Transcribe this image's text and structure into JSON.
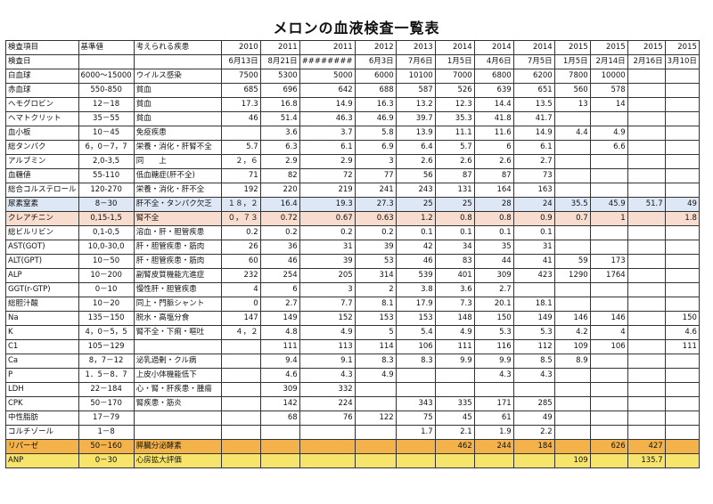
{
  "title": "メロンの血液検査一覧表",
  "header": {
    "item": "検査項目",
    "ref": "基準値",
    "disease": "考えられる疾患",
    "years": [
      "2010",
      "2011",
      "2011",
      "2012",
      "2013",
      "2014",
      "2014",
      "2014",
      "2015",
      "2015",
      "2015",
      "2015"
    ]
  },
  "date_row": {
    "label": "検査日",
    "dates": [
      "6月13日",
      "8月21日",
      "########",
      "6月3日",
      "7月6日",
      "1月5日",
      "4月6日",
      "7月5日",
      "1月5日",
      "2月14日",
      "2月16日",
      "3月10日"
    ]
  },
  "rows": [
    {
      "label": "白血球",
      "ref": "6000～15000",
      "disease": "ウイルス感染",
      "values": [
        "7500",
        "5300",
        "5000",
        "6000",
        "10100",
        "7000",
        "6800",
        "6200",
        "7800",
        "10000",
        "",
        ""
      ],
      "hl": ""
    },
    {
      "label": "赤血球",
      "ref": "550-850",
      "disease": "貧血",
      "values": [
        "685",
        "696",
        "642",
        "688",
        "587",
        "526",
        "639",
        "651",
        "560",
        "578",
        "",
        ""
      ],
      "hl": ""
    },
    {
      "label": "ヘモグロビン",
      "ref": "12－18",
      "disease": "貧血",
      "values": [
        "17.3",
        "16.8",
        "14.9",
        "16.3",
        "13.2",
        "12.3",
        "14.4",
        "13.5",
        "13",
        "14",
        "",
        ""
      ],
      "hl": ""
    },
    {
      "label": "ヘマトクリット",
      "ref": "35－55",
      "disease": "貧血",
      "values": [
        "46",
        "51.4",
        "46.3",
        "46.9",
        "39.7",
        "35.3",
        "41.8",
        "41.7",
        "",
        "",
        "",
        ""
      ],
      "hl": ""
    },
    {
      "label": "血小板",
      "ref": "10－45",
      "disease": "免疫疾患",
      "values": [
        "",
        "3.6",
        "3.7",
        "5.8",
        "13.9",
        "11.1",
        "11.6",
        "14.9",
        "4.4",
        "4.9",
        "",
        ""
      ],
      "hl": ""
    },
    {
      "label": "総タンパク",
      "ref": "6，0－7，7",
      "disease": "栄養・消化・肝腎不全",
      "values": [
        "5.7",
        "6.3",
        "6.1",
        "6.9",
        "6.4",
        "5.7",
        "6",
        "6.1",
        "",
        "6.6",
        "",
        ""
      ],
      "hl": ""
    },
    {
      "label": "アルブミン",
      "ref": "2,0-3,5",
      "disease": "同　　上",
      "values": [
        "２，６",
        "2.9",
        "2.9",
        "3",
        "2.6",
        "2.6",
        "2.6",
        "2.7",
        "",
        "",
        "",
        ""
      ],
      "hl": ""
    },
    {
      "label": "血糖値",
      "ref": "55-110",
      "disease": "低血糖症(肝不全)",
      "values": [
        "71",
        "82",
        "72",
        "77",
        "56",
        "87",
        "87",
        "73",
        "",
        "",
        "",
        ""
      ],
      "hl": ""
    },
    {
      "label": "総合コルステロール",
      "ref": "120-270",
      "disease": "栄養・消化・肝不全",
      "values": [
        "192",
        "220",
        "219",
        "241",
        "243",
        "131",
        "164",
        "163",
        "",
        "",
        "",
        ""
      ],
      "hl": ""
    },
    {
      "label": "尿素窒素",
      "ref": "8－30",
      "disease": "肝不全・タンパク欠乏",
      "values": [
        "１８，２",
        "16.4",
        "19.3",
        "27.3",
        "25",
        "25",
        "28",
        "24",
        "35.5",
        "45.9",
        "51.7",
        "49"
      ],
      "hl": "blue"
    },
    {
      "label": "クレアチニン",
      "ref": "0,15-1,5",
      "disease": "腎不全",
      "values": [
        "０，７３",
        "0.72",
        "0.67",
        "0.63",
        "1.2",
        "0.8",
        "0.8",
        "0.9",
        "0.7",
        "1",
        "",
        "1.8"
      ],
      "hl": "pink"
    },
    {
      "label": "総ビルリビン",
      "ref": "0,1-0,5",
      "disease": "溶血・肝・胆管疾患",
      "values": [
        "0.2",
        "0.2",
        "0.2",
        "0.2",
        "0.1",
        "0.1",
        "0.1",
        "0.1",
        "",
        "",
        "",
        ""
      ],
      "hl": ""
    },
    {
      "label": "AST(GOT)",
      "ref": "10,0-30,0",
      "disease": "肝・胆管疾患・筋肉",
      "values": [
        "26",
        "36",
        "31",
        "39",
        "42",
        "34",
        "35",
        "31",
        "",
        "",
        "",
        ""
      ],
      "hl": ""
    },
    {
      "label": "ALT(GPT)",
      "ref": "10－50",
      "disease": "肝・胆管疾患・筋肉",
      "values": [
        "60",
        "46",
        "39",
        "53",
        "46",
        "83",
        "44",
        "41",
        "59",
        "173",
        "",
        ""
      ],
      "hl": ""
    },
    {
      "label": "ALP",
      "ref": "10－200",
      "disease": "副腎皮質機能亢進症",
      "values": [
        "232",
        "254",
        "205",
        "314",
        "539",
        "401",
        "309",
        "423",
        "1290",
        "1764",
        "",
        ""
      ],
      "hl": ""
    },
    {
      "label": "GGT(r-GTP)",
      "ref": "0－10",
      "disease": "慢性肝・胆管疾患",
      "values": [
        "4",
        "6",
        "3",
        "2",
        "3.8",
        "3.6",
        "2.7",
        "",
        "",
        "",
        "",
        ""
      ],
      "hl": ""
    },
    {
      "label": "総胆汁酸",
      "ref": "10－20",
      "disease": "同上・門脈シャント",
      "values": [
        "0",
        "2.7",
        "7.7",
        "8.1",
        "17.9",
        "7.3",
        "20.1",
        "18.1",
        "",
        "",
        "",
        ""
      ],
      "hl": ""
    },
    {
      "label": "Na",
      "ref": "135－150",
      "disease": "脱水・高塩分食",
      "values": [
        "147",
        "149",
        "152",
        "153",
        "153",
        "148",
        "150",
        "149",
        "146",
        "146",
        "",
        "150"
      ],
      "hl": ""
    },
    {
      "label": "K",
      "ref": "4，0－5，5",
      "disease": "腎不全・下痢・嘔吐",
      "values": [
        "４，２",
        "4.8",
        "4.9",
        "5",
        "5.4",
        "4.9",
        "5.3",
        "5.3",
        "4.2",
        "4",
        "",
        "4.6"
      ],
      "hl": ""
    },
    {
      "label": "C1",
      "ref": "105－129",
      "disease": "",
      "values": [
        "",
        "111",
        "113",
        "114",
        "106",
        "111",
        "116",
        "112",
        "109",
        "106",
        "",
        "111"
      ],
      "hl": ""
    },
    {
      "label": "Ca",
      "ref": "8，7－12",
      "disease": "泌乳過剰・クル病",
      "values": [
        "",
        "9.4",
        "9.1",
        "8.3",
        "8.3",
        "9.9",
        "9.9",
        "8.5",
        "8.9",
        "",
        "",
        ""
      ],
      "hl": ""
    },
    {
      "label": "P",
      "ref": "1．5－8．7",
      "disease": "上皮小体機能低下",
      "values": [
        "",
        "4.6",
        "4.3",
        "4.9",
        "",
        "",
        "4.3",
        "4.3",
        "",
        "",
        "",
        ""
      ],
      "hl": ""
    },
    {
      "label": "LDH",
      "ref": "22－184",
      "disease": "心・腎・肝疾患・腫瘍",
      "values": [
        "",
        "309",
        "332",
        "",
        "",
        "",
        "",
        "",
        "",
        "",
        "",
        ""
      ],
      "hl": ""
    },
    {
      "label": "CPK",
      "ref": "50－170",
      "disease": "腎疾患・筋炎",
      "values": [
        "",
        "142",
        "224",
        "",
        "343",
        "335",
        "171",
        "285",
        "",
        "",
        "",
        ""
      ],
      "hl": ""
    },
    {
      "label": "中性脂肪",
      "ref": "17－79",
      "disease": "",
      "values": [
        "",
        "68",
        "76",
        "122",
        "75",
        "45",
        "61",
        "49",
        "",
        "",
        "",
        ""
      ],
      "hl": ""
    },
    {
      "label": "コルチゾール",
      "ref": "1－8",
      "disease": "",
      "values": [
        "",
        "",
        "",
        "",
        "1.7",
        "2.1",
        "1.9",
        "2.2",
        "",
        "",
        "",
        ""
      ],
      "hl": ""
    },
    {
      "label": "リパーゼ",
      "ref": "50－160",
      "disease": "膵臓分泌酵素",
      "values": [
        "",
        "",
        "",
        "",
        "",
        "462",
        "244",
        "184",
        "",
        "626",
        "427",
        ""
      ],
      "hl": "orange"
    },
    {
      "label": "ANP",
      "ref": "0－30",
      "disease": "心房拡大評価",
      "values": [
        "",
        "",
        "",
        "",
        "",
        "",
        "",
        "",
        "109",
        "",
        "135.7",
        ""
      ],
      "hl": "yellow"
    }
  ]
}
